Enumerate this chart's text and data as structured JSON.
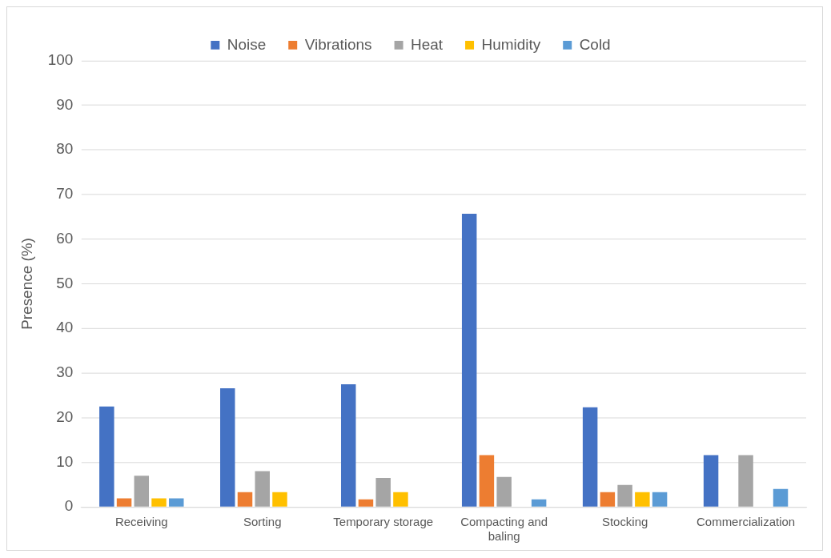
{
  "chart_data": {
    "type": "bar",
    "ylabel": "Presence (%)",
    "categories": [
      "Receiving",
      "Sorting",
      "Temporary storage",
      "Compacting and baling",
      "Stocking",
      "Commercialization"
    ],
    "series": [
      {
        "name": "Noise",
        "color": "#4472c4",
        "values": [
          22.5,
          26.6,
          27.5,
          65.7,
          22.3,
          11.6
        ]
      },
      {
        "name": "Vibrations",
        "color": "#ed7d31",
        "values": [
          1.9,
          3.3,
          1.7,
          11.6,
          3.3,
          null
        ]
      },
      {
        "name": "Heat",
        "color": "#a5a5a5",
        "values": [
          7.0,
          8.0,
          6.5,
          6.7,
          4.9,
          11.6
        ]
      },
      {
        "name": "Humidity",
        "color": "#ffc000",
        "values": [
          1.9,
          3.3,
          3.3,
          null,
          3.3,
          null
        ]
      },
      {
        "name": "Cold",
        "color": "#5b9bd5",
        "values": [
          1.9,
          null,
          null,
          1.7,
          3.3,
          4.0
        ]
      }
    ],
    "ylim": [
      0,
      100
    ],
    "yticks": [
      0,
      10,
      20,
      30,
      40,
      50,
      60,
      70,
      80,
      90,
      100
    ],
    "grid": "y",
    "legend": "top"
  }
}
